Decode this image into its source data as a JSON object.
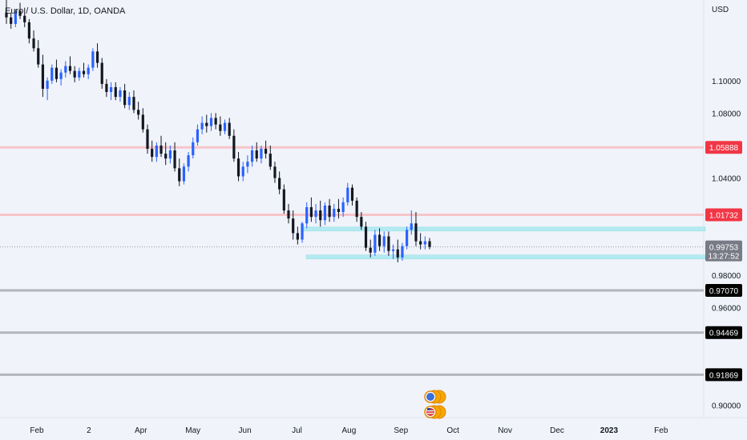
{
  "chart_data": {
    "type": "candlestick",
    "title": "Euro / U.S. Dollar, 1D, OANDA",
    "currency": "USD",
    "x_axis": {
      "labels": [
        "Feb",
        "2",
        "Apr",
        "May",
        "Jun",
        "Jul",
        "Aug",
        "Sep",
        "Oct",
        "Nov",
        "Dec",
        "2023",
        "Feb"
      ],
      "bold_label": "2023"
    },
    "y_axis": {
      "ticks": [
        1.1,
        1.08,
        1.04,
        0.98,
        0.96,
        0.9
      ],
      "tick_labels": [
        "1.10000",
        "1.08000",
        "1.04000",
        "0.98000",
        "0.96000",
        "0.90000"
      ],
      "range": [
        0.893,
        1.149
      ]
    },
    "last_price": {
      "value": 0.99753,
      "label": "0.99753",
      "countdown": "13:27:52",
      "color": "#787b86"
    },
    "horizontal_lines": [
      {
        "value": 1.05888,
        "label": "1.05888",
        "color": "#f7c5ca",
        "badge_color": "#f23645",
        "style": "resistance"
      },
      {
        "value": 1.01732,
        "label": "1.01732",
        "color": "#f7c5ca",
        "badge_color": "#f23645",
        "style": "resistance"
      },
      {
        "value": 0.9707,
        "label": "0.97070",
        "color": "#b2b5be",
        "badge_color": "#000000",
        "style": "level"
      },
      {
        "value": 0.94469,
        "label": "0.94469",
        "color": "#b2b5be",
        "badge_color": "#000000",
        "style": "level"
      },
      {
        "value": 0.91869,
        "label": "0.91869",
        "color": "#b2b5be",
        "badge_color": "#000000",
        "style": "level"
      }
    ],
    "zones": [
      {
        "value": 1.0085,
        "color": "#b2ebf2"
      },
      {
        "value": 0.9913,
        "color": "#b2ebf2"
      }
    ],
    "candles": [
      [
        1.142,
        1.15,
        1.135,
        1.139
      ],
      [
        1.139,
        1.142,
        1.132,
        1.135
      ],
      [
        1.135,
        1.144,
        1.133,
        1.143
      ],
      [
        1.143,
        1.148,
        1.138,
        1.14
      ],
      [
        1.14,
        1.145,
        1.133,
        1.136
      ],
      [
        1.136,
        1.138,
        1.123,
        1.126
      ],
      [
        1.126,
        1.131,
        1.118,
        1.12
      ],
      [
        1.12,
        1.125,
        1.108,
        1.11
      ],
      [
        1.11,
        1.116,
        1.09,
        1.095
      ],
      [
        1.095,
        1.102,
        1.088,
        1.1
      ],
      [
        1.1,
        1.11,
        1.098,
        1.108
      ],
      [
        1.108,
        1.113,
        1.099,
        1.101
      ],
      [
        1.101,
        1.107,
        1.097,
        1.105
      ],
      [
        1.105,
        1.112,
        1.102,
        1.109
      ],
      [
        1.109,
        1.115,
        1.104,
        1.106
      ],
      [
        1.106,
        1.109,
        1.099,
        1.102
      ],
      [
        1.102,
        1.108,
        1.1,
        1.106
      ],
      [
        1.106,
        1.111,
        1.102,
        1.104
      ],
      [
        1.104,
        1.11,
        1.101,
        1.108
      ],
      [
        1.108,
        1.12,
        1.106,
        1.118
      ],
      [
        1.118,
        1.123,
        1.108,
        1.111
      ],
      [
        1.111,
        1.114,
        1.095,
        1.098
      ],
      [
        1.098,
        1.101,
        1.09,
        1.093
      ],
      [
        1.093,
        1.099,
        1.088,
        1.096
      ],
      [
        1.096,
        1.099,
        1.088,
        1.09
      ],
      [
        1.09,
        1.096,
        1.087,
        1.094
      ],
      [
        1.094,
        1.098,
        1.083,
        1.085
      ],
      [
        1.085,
        1.093,
        1.082,
        1.09
      ],
      [
        1.09,
        1.094,
        1.08,
        1.082
      ],
      [
        1.082,
        1.087,
        1.076,
        1.079
      ],
      [
        1.079,
        1.083,
        1.068,
        1.07
      ],
      [
        1.07,
        1.073,
        1.055,
        1.058
      ],
      [
        1.058,
        1.063,
        1.05,
        1.053
      ],
      [
        1.053,
        1.062,
        1.05,
        1.06
      ],
      [
        1.06,
        1.066,
        1.053,
        1.055
      ],
      [
        1.055,
        1.062,
        1.048,
        1.052
      ],
      [
        1.052,
        1.06,
        1.049,
        1.057
      ],
      [
        1.057,
        1.062,
        1.044,
        1.046
      ],
      [
        1.046,
        1.052,
        1.035,
        1.038
      ],
      [
        1.038,
        1.049,
        1.036,
        1.047
      ],
      [
        1.047,
        1.056,
        1.044,
        1.054
      ],
      [
        1.054,
        1.065,
        1.052,
        1.062
      ],
      [
        1.062,
        1.073,
        1.06,
        1.07
      ],
      [
        1.07,
        1.078,
        1.067,
        1.074
      ],
      [
        1.074,
        1.079,
        1.068,
        1.072
      ],
      [
        1.072,
        1.08,
        1.069,
        1.077
      ],
      [
        1.077,
        1.08,
        1.07,
        1.073
      ],
      [
        1.073,
        1.078,
        1.066,
        1.069
      ],
      [
        1.069,
        1.076,
        1.067,
        1.074
      ],
      [
        1.074,
        1.077,
        1.064,
        1.066
      ],
      [
        1.066,
        1.07,
        1.05,
        1.052
      ],
      [
        1.052,
        1.056,
        1.038,
        1.041
      ],
      [
        1.041,
        1.05,
        1.038,
        1.047
      ],
      [
        1.047,
        1.054,
        1.043,
        1.05
      ],
      [
        1.05,
        1.06,
        1.047,
        1.057
      ],
      [
        1.057,
        1.062,
        1.05,
        1.052
      ],
      [
        1.052,
        1.06,
        1.049,
        1.058
      ],
      [
        1.058,
        1.063,
        1.052,
        1.055
      ],
      [
        1.055,
        1.06,
        1.045,
        1.047
      ],
      [
        1.047,
        1.05,
        1.037,
        1.04
      ],
      [
        1.04,
        1.044,
        1.03,
        1.033
      ],
      [
        1.033,
        1.036,
        1.018,
        1.02
      ],
      [
        1.02,
        1.024,
        1.012,
        1.015
      ],
      [
        1.015,
        1.02,
        1.002,
        1.006
      ],
      [
        1.006,
        1.01,
        0.999,
        1.002
      ],
      [
        1.002,
        1.013,
        1.0,
        1.012
      ],
      [
        1.012,
        1.025,
        1.009,
        1.022
      ],
      [
        1.022,
        1.028,
        1.013,
        1.016
      ],
      [
        1.016,
        1.024,
        1.012,
        1.02
      ],
      [
        1.02,
        1.026,
        1.01,
        1.014
      ],
      [
        1.014,
        1.025,
        1.011,
        1.023
      ],
      [
        1.023,
        1.027,
        1.013,
        1.016
      ],
      [
        1.016,
        1.024,
        1.013,
        1.021
      ],
      [
        1.021,
        1.027,
        1.015,
        1.019
      ],
      [
        1.019,
        1.028,
        1.016,
        1.025
      ],
      [
        1.025,
        1.037,
        1.023,
        1.034
      ],
      [
        1.034,
        1.036,
        1.023,
        1.026
      ],
      [
        1.026,
        1.028,
        1.013,
        1.016
      ],
      [
        1.016,
        1.019,
        1.008,
        1.01
      ],
      [
        1.01,
        1.013,
        0.995,
        0.997
      ],
      [
        0.997,
        1.002,
        0.991,
        0.994
      ],
      [
        0.994,
        1.008,
        0.992,
        1.005
      ],
      [
        1.005,
        1.009,
        0.995,
        0.998
      ],
      [
        0.998,
        1.007,
        0.994,
        1.004
      ],
      [
        1.004,
        1.007,
        0.992,
        0.995
      ],
      [
        0.995,
        0.999,
        0.99,
        0.996
      ],
      [
        0.996,
        1.002,
        0.988,
        0.991
      ],
      [
        0.991,
        1.0,
        0.989,
        0.998
      ],
      [
        0.998,
        1.01,
        0.996,
        1.008
      ],
      [
        1.008,
        1.02,
        1.005,
        1.012
      ],
      [
        1.012,
        1.019,
        0.998,
        1.001
      ],
      [
        1.001,
        1.006,
        0.996,
        0.999
      ],
      [
        0.999,
        1.004,
        0.996,
        1.001
      ],
      [
        1.001,
        1.003,
        0.996,
        0.9975
      ]
    ]
  }
}
